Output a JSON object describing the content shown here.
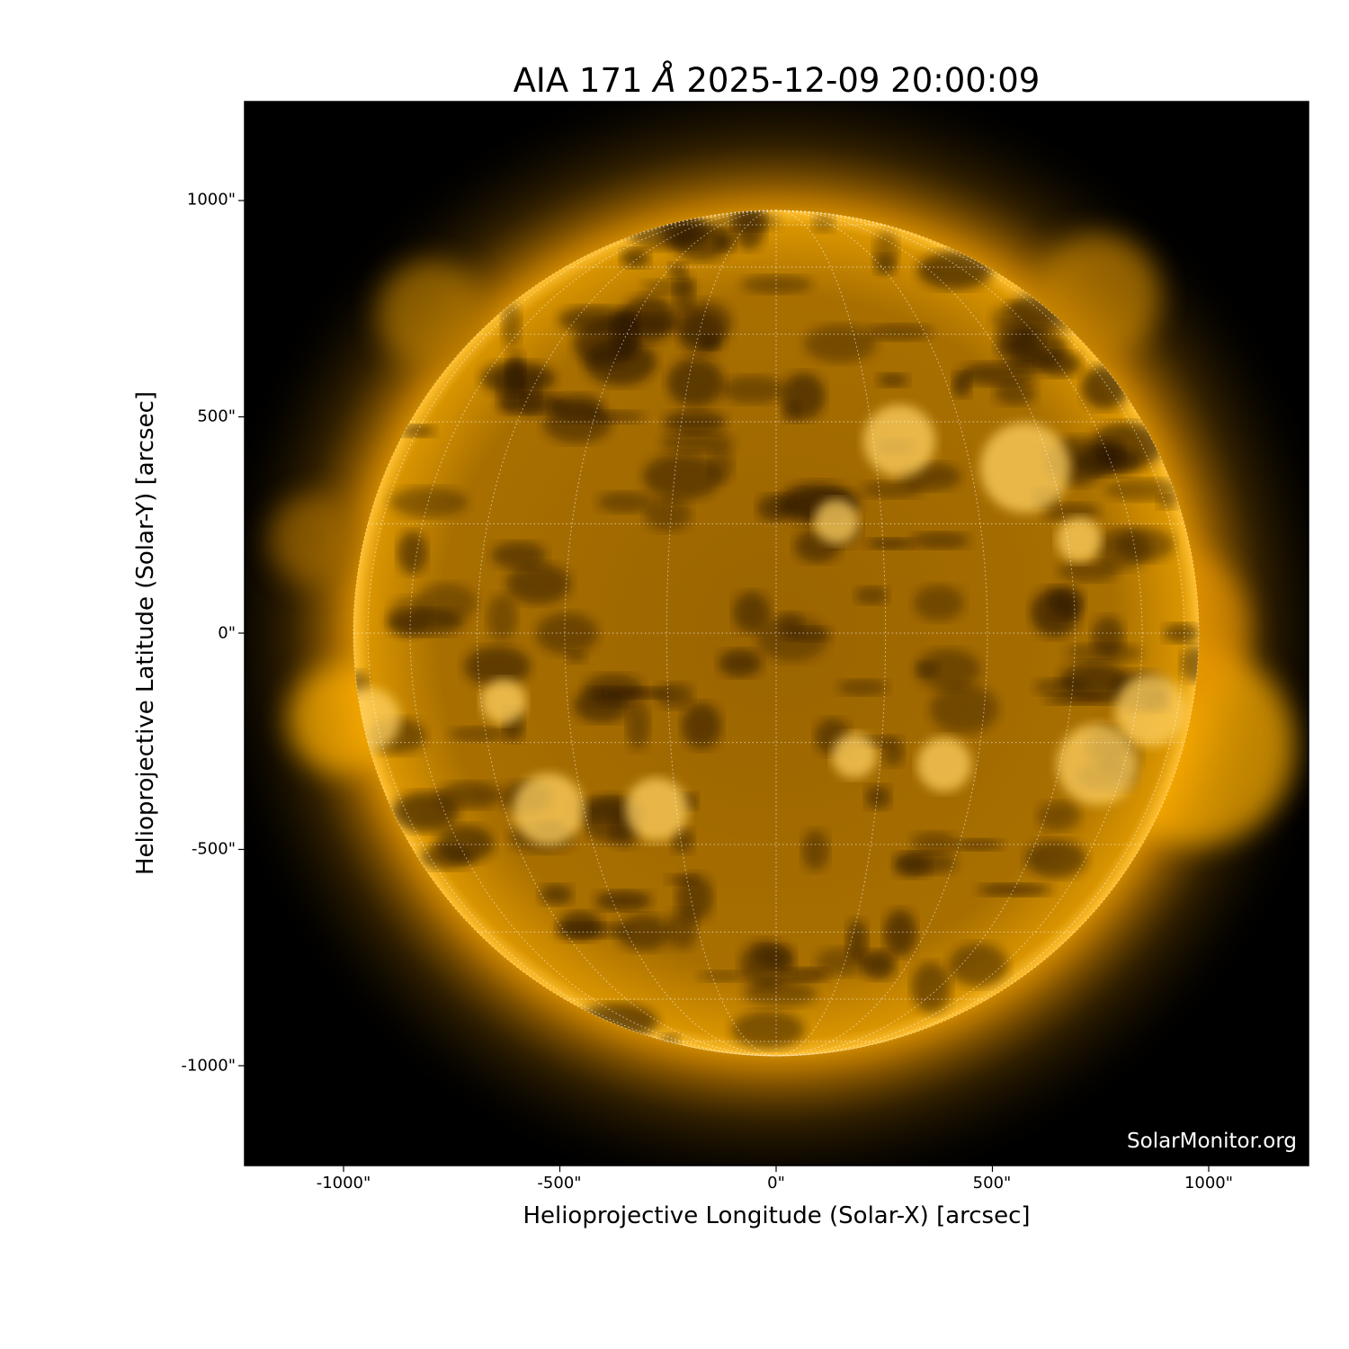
{
  "title": {
    "prefix": "AIA 171 ",
    "unit": "Å",
    "suffix": " 2025-12-09 20:00:09"
  },
  "axes": {
    "xlabel": "Helioprojective Longitude (Solar-X) [arcsec]",
    "ylabel": "Helioprojective Latitude (Solar-Y) [arcsec]",
    "xticks": [
      "-1000\"",
      "-500\"",
      "0\"",
      "500\"",
      "1000\""
    ],
    "yticks": [
      "1000\"",
      "500\"",
      "0\"",
      "-500\"",
      "-1000\""
    ],
    "xtick_values": [
      -1000,
      -500,
      0,
      500,
      1000
    ],
    "ytick_values": [
      1000,
      500,
      0,
      -500,
      -1000
    ],
    "xlim": [
      -1230,
      1230
    ],
    "ylim": [
      -1230,
      1230
    ]
  },
  "image": {
    "wavelength": "171",
    "colormap": "sdoaia171",
    "disk_color": "#b07800",
    "bright_color": "#ffd060",
    "background": "#000000",
    "grid_color": "#ffffff",
    "grid_spacing_deg": 15
  },
  "watermark": "SolarMonitor.org"
}
